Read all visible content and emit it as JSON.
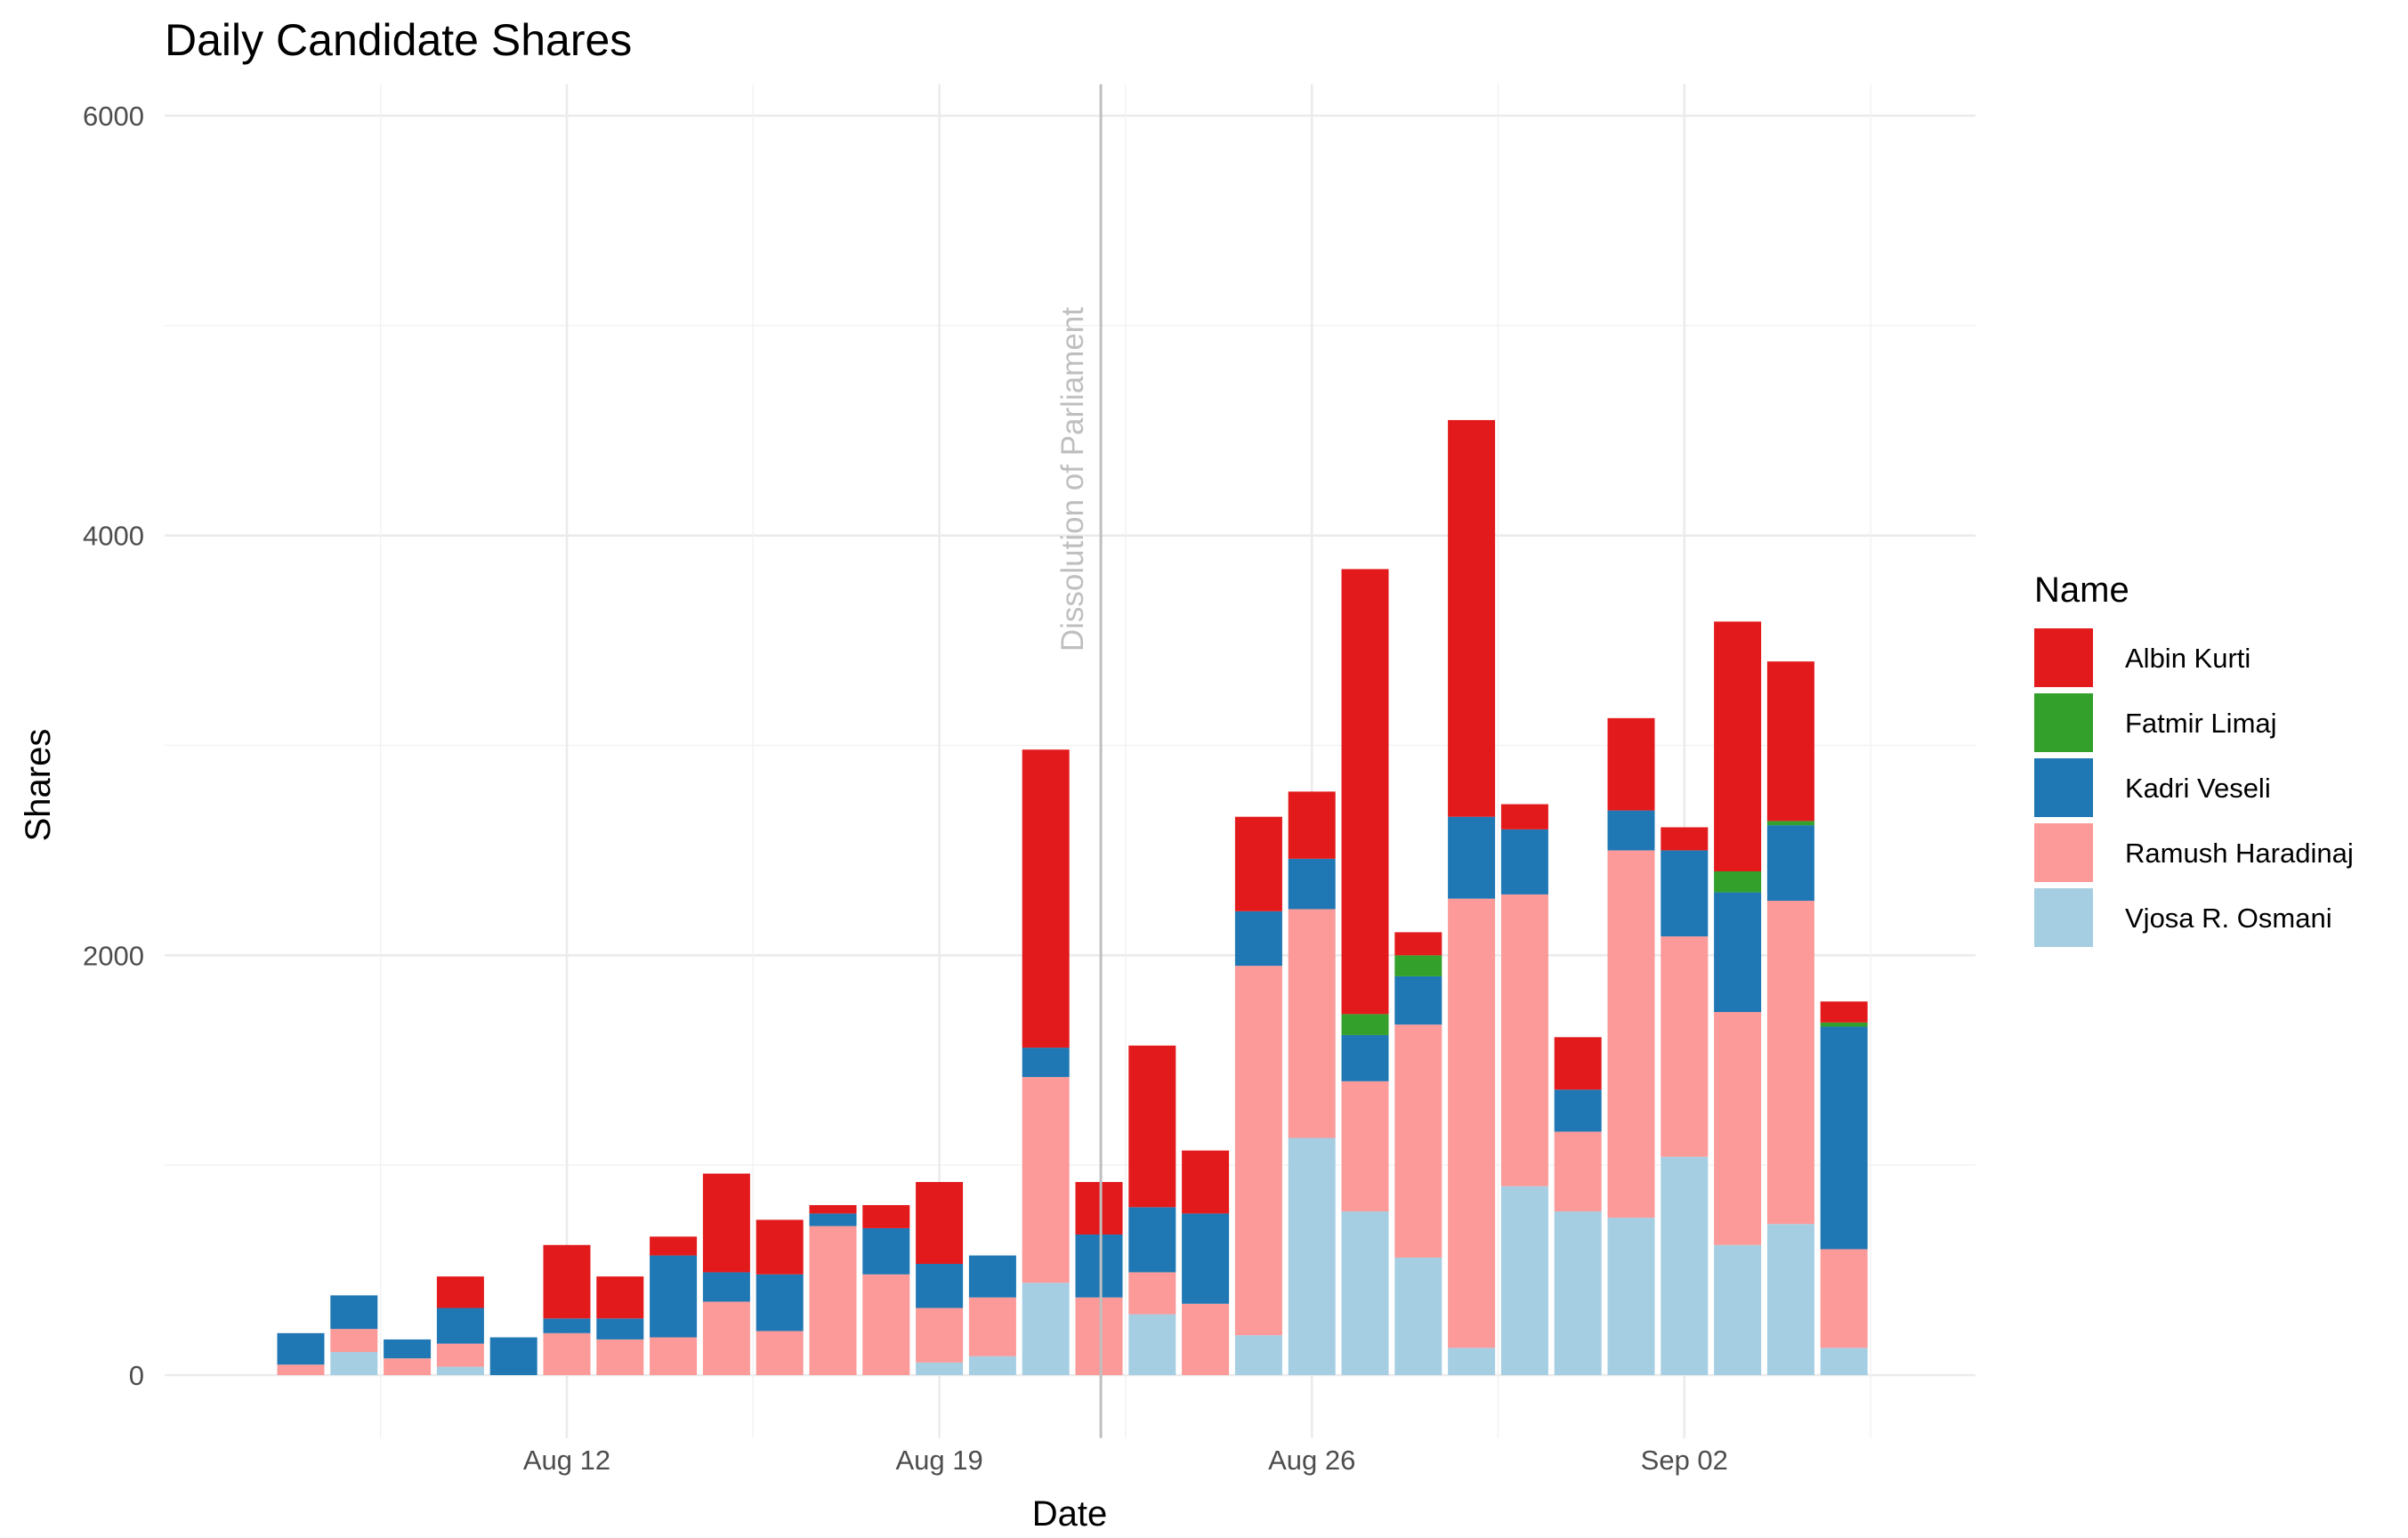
{
  "chart_data": {
    "type": "bar",
    "stacked": true,
    "title": "Daily Candidate Shares",
    "xlabel": "Date",
    "ylabel": "Shares",
    "x_start": "2019-08-07",
    "x_tick_labels": [
      "Aug 12",
      "Aug 19",
      "Aug 26",
      "Sep 02"
    ],
    "x_tick_dates": [
      "2019-08-12",
      "2019-08-19",
      "2019-08-26",
      "2019-09-02"
    ],
    "y_ticks": [
      0,
      2000,
      4000,
      6000
    ],
    "ylim": [
      -300,
      6150
    ],
    "grid": true,
    "legend": {
      "title": "Name",
      "position": "right"
    },
    "annotation": {
      "label": "Dissolution of Parliament",
      "date": "2019-08-22",
      "color": "#bfbfbf"
    },
    "categories": [
      "2019-08-07",
      "2019-08-08",
      "2019-08-09",
      "2019-08-10",
      "2019-08-11",
      "2019-08-12",
      "2019-08-13",
      "2019-08-14",
      "2019-08-15",
      "2019-08-16",
      "2019-08-17",
      "2019-08-18",
      "2019-08-19",
      "2019-08-20",
      "2019-08-21",
      "2019-08-22",
      "2019-08-23",
      "2019-08-24",
      "2019-08-25",
      "2019-08-26",
      "2019-08-27",
      "2019-08-28",
      "2019-08-29",
      "2019-08-30",
      "2019-08-31",
      "2019-09-01",
      "2019-09-02",
      "2019-09-03",
      "2019-09-04",
      "2019-09-05",
      "2019-09-06"
    ],
    "series": [
      {
        "name": "Vjosa R. Osmani",
        "color": "#a6cee3",
        "values": [
          0,
          110,
          0,
          40,
          0,
          0,
          0,
          0,
          0,
          0,
          0,
          0,
          60,
          90,
          440,
          0,
          290,
          0,
          190,
          1130,
          780,
          560,
          130,
          900,
          780,
          750,
          1040,
          620,
          720,
          130,
          0
        ]
      },
      {
        "name": "Ramush Haradinaj",
        "color": "#fb9a99",
        "values": [
          50,
          110,
          80,
          110,
          0,
          200,
          170,
          180,
          350,
          210,
          710,
          480,
          260,
          280,
          980,
          370,
          200,
          340,
          1760,
          1090,
          620,
          1110,
          2140,
          1390,
          380,
          1750,
          1050,
          1110,
          1540,
          470,
          0
        ]
      },
      {
        "name": "Kadri Veseli",
        "color": "#1f78b4",
        "values": [
          150,
          160,
          90,
          170,
          180,
          70,
          100,
          390,
          140,
          270,
          60,
          220,
          210,
          200,
          140,
          300,
          310,
          430,
          260,
          240,
          220,
          230,
          390,
          310,
          200,
          190,
          410,
          570,
          360,
          1060,
          0
        ]
      },
      {
        "name": "Fatmir Limaj",
        "color": "#33a02c",
        "values": [
          0,
          0,
          0,
          0,
          0,
          0,
          0,
          0,
          0,
          0,
          0,
          0,
          0,
          0,
          0,
          0,
          0,
          0,
          0,
          0,
          100,
          100,
          0,
          0,
          0,
          0,
          0,
          100,
          20,
          20,
          0
        ]
      },
      {
        "name": "Albin Kurti",
        "color": "#e31a1c",
        "values": [
          0,
          0,
          0,
          150,
          0,
          350,
          200,
          90,
          470,
          260,
          40,
          110,
          390,
          0,
          1420,
          250,
          770,
          300,
          450,
          320,
          2120,
          110,
          1890,
          120,
          250,
          440,
          110,
          1190,
          760,
          100,
          0
        ]
      }
    ]
  }
}
